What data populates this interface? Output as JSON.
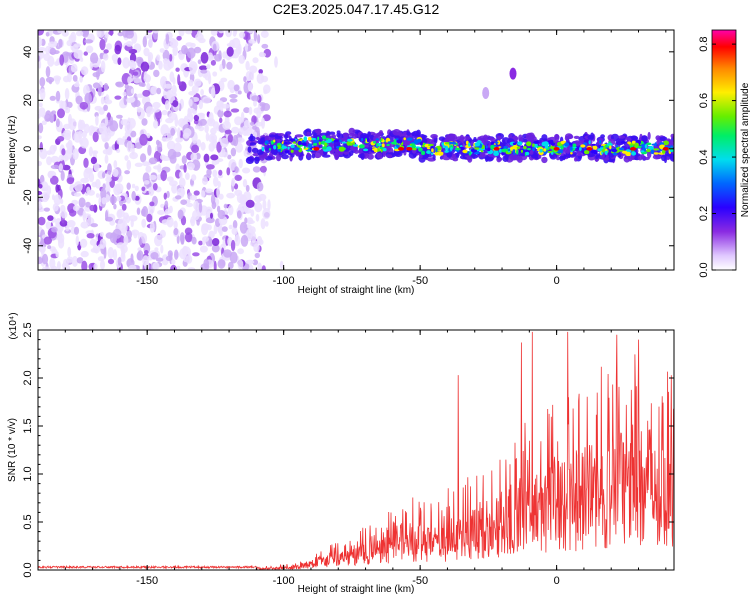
{
  "chart_data": [
    {
      "type": "heatmap",
      "title": "C2E3.2025.047.17.45.G12",
      "xlabel": "Height of straight line (km)",
      "ylabel": "Frequency (Hz)",
      "xlim": [
        -190,
        43
      ],
      "ylim": [
        -50,
        49
      ],
      "xticks": [
        -150,
        -100,
        -50,
        0
      ],
      "yticks": [
        -40,
        -20,
        0,
        20,
        40
      ],
      "colorbar": {
        "label": "Normalized spectral amplitude",
        "range": [
          0.0,
          0.85
        ],
        "ticks": [
          0.0,
          0.2,
          0.4,
          0.6,
          0.8
        ],
        "colormap": [
          "#ffffff",
          "#e0c8ff",
          "#8a2be2",
          "#2a00ff",
          "#0066ff",
          "#00ddee",
          "#00ee66",
          "#66ee00",
          "#ffee00",
          "#ff8800",
          "#ff0000",
          "#ff00aa"
        ]
      },
      "regions": [
        {
          "name": "noise",
          "x_range": [
            -190,
            -106
          ],
          "y_range": [
            -50,
            49
          ],
          "typical_amplitude": 0.05
        },
        {
          "name": "signal band",
          "x_range": [
            -113,
            43
          ],
          "center_frequency": 0,
          "half_width": 5,
          "peak_amplitude": 0.85
        },
        {
          "name": "feature",
          "x": -16,
          "y": 31,
          "amplitude": 0.1
        },
        {
          "name": "feature",
          "x": -26,
          "y": 23,
          "amplitude": 0.05
        }
      ]
    },
    {
      "type": "line",
      "xlabel": "Height of straight line (km)",
      "ylabel": "SNR (10 * v/v)",
      "y_multiplier": "(x10⁴)",
      "xlim": [
        -190,
        43
      ],
      "ylim": [
        0,
        2.5
      ],
      "xticks": [
        -150,
        -100,
        -50,
        0
      ],
      "yticks": [
        0.0,
        0.5,
        1.0,
        1.5,
        2.0,
        2.5
      ],
      "color": "#ee3333",
      "envelope": {
        "x": [
          -190,
          -110,
          -95,
          -85,
          -75,
          -65,
          -55,
          -45,
          -35,
          -25,
          -15,
          -5,
          5,
          15,
          25,
          35,
          43
        ],
        "y": [
          0.02,
          0.03,
          0.08,
          0.25,
          0.35,
          0.6,
          0.8,
          0.7,
          1.0,
          1.1,
          1.5,
          1.7,
          1.9,
          2.1,
          2.3,
          2.4,
          2.3
        ]
      },
      "spikes": [
        {
          "x": -36,
          "y": 2.03
        },
        {
          "x": -13,
          "y": 2.37
        },
        {
          "x": -9,
          "y": 2.48
        },
        {
          "x": 4,
          "y": 2.48
        },
        {
          "x": 22,
          "y": 2.45
        },
        {
          "x": 30,
          "y": 2.4
        }
      ]
    }
  ]
}
